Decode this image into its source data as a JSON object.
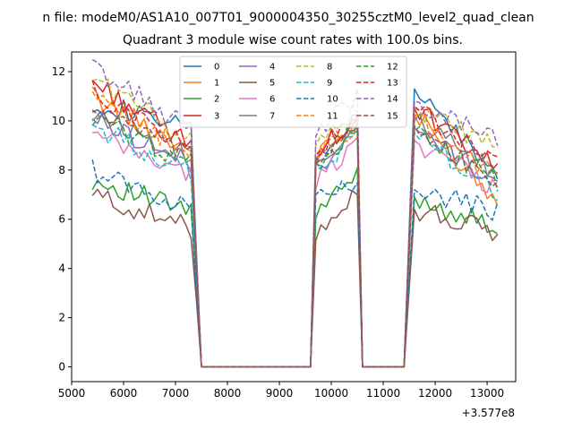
{
  "file_title": "n file: modeM0/AS1A10_007T01_9000004350_30255cztM0_level2_quad_clean",
  "chart_data": {
    "type": "line",
    "title": "Quadrant 3 module wise count rates with 100.0s bins.",
    "xlabel": "",
    "ylabel": "",
    "x_offset_label": "+3.577e8",
    "xlim": [
      5000,
      13550
    ],
    "ylim": [
      -0.6,
      12.8
    ],
    "xticks": [
      5000,
      6000,
      7000,
      8000,
      9000,
      10000,
      11000,
      12000,
      13000
    ],
    "xtick_labels": [
      "5000",
      "6000",
      "7000",
      "8000",
      "9000",
      "10000",
      "11000",
      "12000",
      "13000"
    ],
    "yticks": [
      0,
      2,
      4,
      6,
      8,
      10,
      12
    ],
    "ytick_labels": [
      "0",
      "2",
      "4",
      "6",
      "8",
      "10",
      "12"
    ],
    "legend_position": "upper center",
    "segments": [
      {
        "x_start": 5400,
        "x_end": 7300,
        "rise_to": 7400,
        "zero_from": 7500
      },
      {
        "x_start": 9700,
        "x_end": 10500,
        "zero_before": 9600,
        "zero_from": 10600
      },
      {
        "x_start": 11600,
        "x_end": 13200,
        "zero_before": 11400,
        "spike_at": 11500
      }
    ],
    "series": [
      {
        "name": "0",
        "color": "#1f77b4",
        "dash": "solid",
        "seg1": [
          10.8,
          9.6
        ],
        "seg2": [
          8.4,
          10.1
        ],
        "seg3": [
          11.3,
          7.8
        ]
      },
      {
        "name": "1",
        "color": "#ff7f0e",
        "dash": "solid",
        "seg1": [
          11.0,
          8.8
        ],
        "seg2": [
          8.6,
          9.8
        ],
        "seg3": [
          10.2,
          6.8
        ]
      },
      {
        "name": "2",
        "color": "#2ca02c",
        "dash": "solid",
        "seg1": [
          7.6,
          6.3
        ],
        "seg2": [
          6.2,
          7.8
        ],
        "seg3": [
          6.9,
          5.6
        ]
      },
      {
        "name": "3",
        "color": "#d62728",
        "dash": "solid",
        "seg1": [
          11.6,
          9.0
        ],
        "seg2": [
          8.8,
          10.0
        ],
        "seg3": [
          10.5,
          8.0
        ]
      },
      {
        "name": "4",
        "color": "#9467bd",
        "dash": "solid",
        "seg1": [
          10.2,
          8.2
        ],
        "seg2": [
          8.0,
          9.7
        ],
        "seg3": [
          9.7,
          7.5
        ]
      },
      {
        "name": "5",
        "color": "#8c564b",
        "dash": "solid",
        "seg1": [
          7.0,
          5.6
        ],
        "seg2": [
          5.5,
          7.2
        ],
        "seg3": [
          6.4,
          5.4
        ]
      },
      {
        "name": "6",
        "color": "#e377c2",
        "dash": "solid",
        "seg1": [
          9.4,
          7.8
        ],
        "seg2": [
          7.5,
          9.2
        ],
        "seg3": [
          9.2,
          7.2
        ]
      },
      {
        "name": "7",
        "color": "#7f7f7f",
        "dash": "solid",
        "seg1": [
          10.3,
          8.6
        ],
        "seg2": [
          8.3,
          9.8
        ],
        "seg3": [
          10.0,
          7.8
        ]
      },
      {
        "name": "8",
        "color": "#bcbd22",
        "dash": "dashed",
        "seg1": [
          11.8,
          9.2
        ],
        "seg2": [
          9.2,
          10.5
        ],
        "seg3": [
          10.5,
          8.9
        ]
      },
      {
        "name": "9",
        "color": "#17becf",
        "dash": "dashed",
        "seg1": [
          9.8,
          7.9
        ],
        "seg2": [
          7.7,
          9.6
        ],
        "seg3": [
          9.5,
          7.0
        ]
      },
      {
        "name": "10",
        "color": "#1f77b4",
        "dash": "dashed",
        "seg1": [
          8.0,
          6.4
        ],
        "seg2": [
          7.3,
          7.5
        ],
        "seg3": [
          7.2,
          6.3
        ]
      },
      {
        "name": "11",
        "color": "#ff7f0e",
        "dash": "dashed",
        "seg1": [
          10.9,
          8.7
        ],
        "seg2": [
          8.5,
          9.9
        ],
        "seg3": [
          10.2,
          7.6
        ]
      },
      {
        "name": "12",
        "color": "#2ca02c",
        "dash": "dashed",
        "seg1": [
          10.1,
          8.3
        ],
        "seg2": [
          8.2,
          9.7
        ],
        "seg3": [
          9.6,
          7.5
        ]
      },
      {
        "name": "13",
        "color": "#d62728",
        "dash": "dashed",
        "seg1": [
          11.2,
          8.9
        ],
        "seg2": [
          8.8,
          10.1
        ],
        "seg3": [
          10.6,
          8.1
        ]
      },
      {
        "name": "14",
        "color": "#9467bd",
        "dash": "dashed",
        "seg1": [
          12.2,
          9.6
        ],
        "seg2": [
          9.6,
          11.0
        ],
        "seg3": [
          10.8,
          9.3
        ]
      },
      {
        "name": "15",
        "color": "#8c564b",
        "dash": "dashed",
        "seg1": [
          10.5,
          8.5
        ],
        "seg2": [
          8.4,
          9.9
        ],
        "seg3": [
          9.8,
          7.4
        ]
      }
    ]
  }
}
